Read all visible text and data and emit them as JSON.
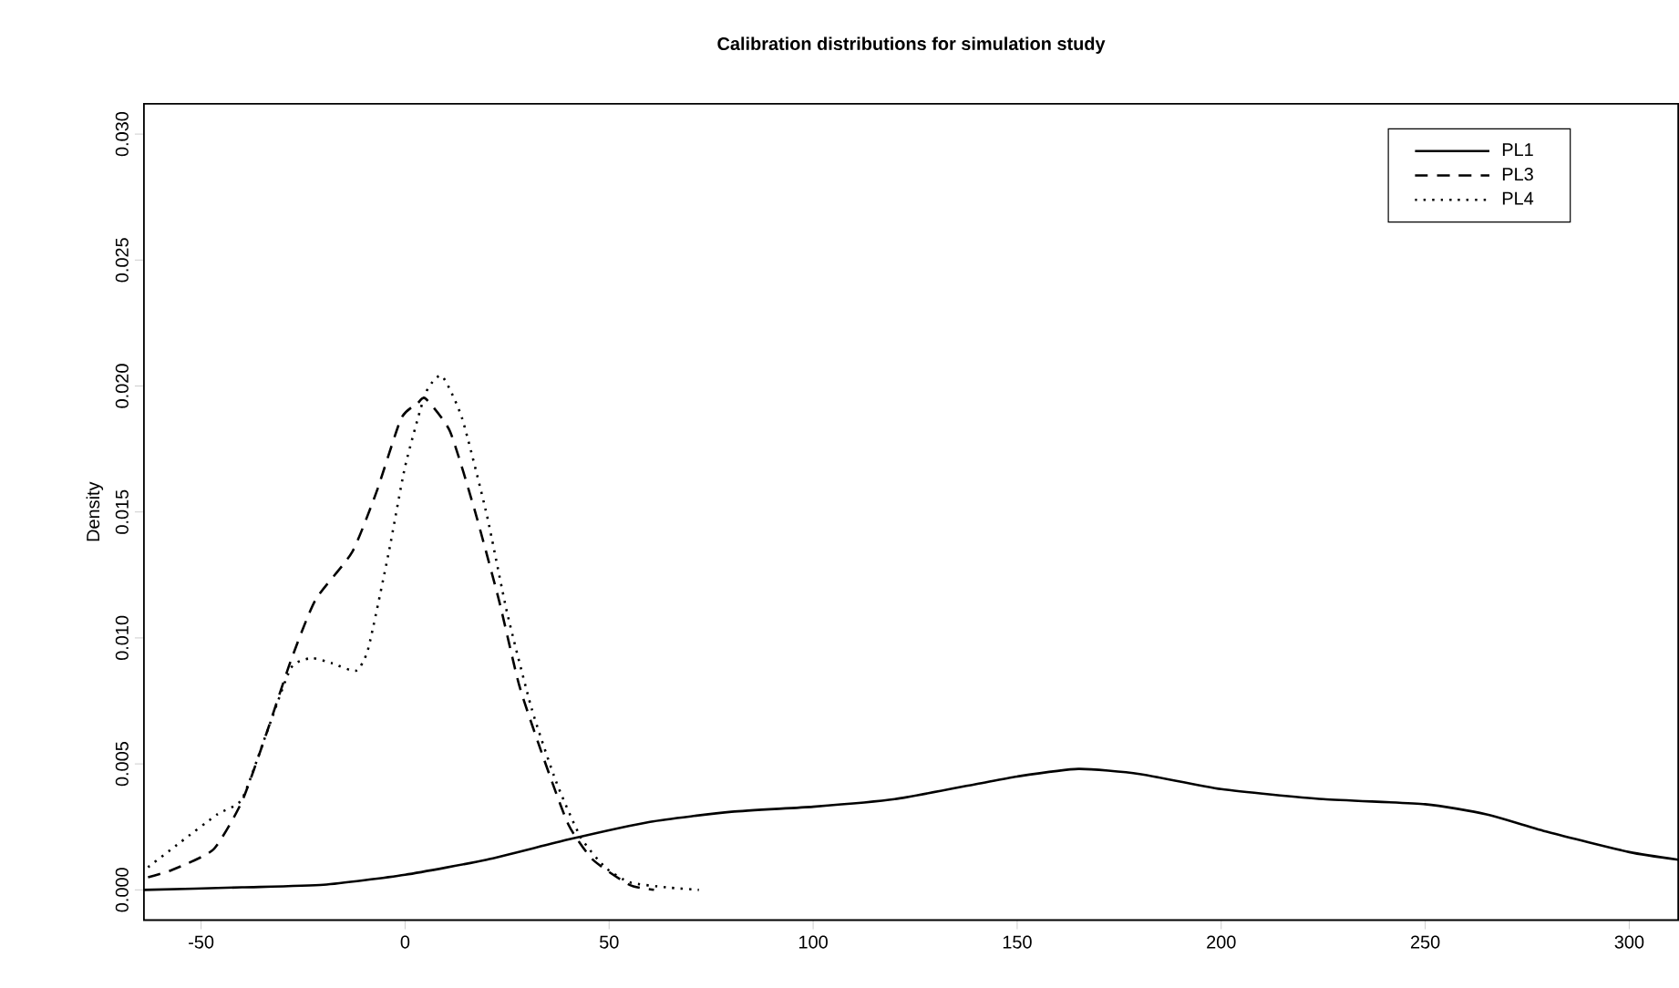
{
  "chart_data": {
    "type": "line",
    "title": "Calibration distributions for simulation study",
    "ylabel": "Density",
    "xlim": [
      -64,
      312
    ],
    "ylim": [
      -0.0012,
      0.0312
    ],
    "xticks": [
      -50,
      0,
      50,
      100,
      150,
      200,
      250,
      300
    ],
    "yticks": [
      {
        "value": 0,
        "label": "0.000"
      },
      {
        "value": 0.005,
        "label": "0.005"
      },
      {
        "value": 0.01,
        "label": "0.010"
      },
      {
        "value": 0.015,
        "label": "0.015"
      },
      {
        "value": 0.02,
        "label": "0.020"
      },
      {
        "value": 0.025,
        "label": "0.025"
      },
      {
        "value": 0.03,
        "label": "0.030"
      }
    ],
    "legend": "top right",
    "grid": false,
    "series": [
      {
        "name": "PL1",
        "color": "#000000",
        "line_style": "solid",
        "x": [
          -64,
          -40,
          -20,
          0,
          20,
          40,
          60,
          80,
          100,
          120,
          140,
          150,
          165,
          180,
          200,
          225,
          250,
          265,
          280,
          300,
          312
        ],
        "values": [
          0,
          0.0001,
          0.0002,
          0.0006,
          0.0012,
          0.002,
          0.0027,
          0.0031,
          0.0033,
          0.0036,
          0.0042,
          0.0045,
          0.0048,
          0.0046,
          0.004,
          0.0036,
          0.0034,
          0.003,
          0.0023,
          0.0015,
          0.0012
        ]
      },
      {
        "name": "PL3",
        "color": "#000000",
        "line_style": "dashed",
        "x": [
          -63,
          -57,
          -47,
          -40,
          -34,
          -28,
          -22,
          -13,
          -7,
          -1,
          3,
          5,
          11,
          17,
          23,
          28,
          34,
          40,
          46,
          55,
          61
        ],
        "values": [
          0.0005,
          0.0008,
          0.0016,
          0.0035,
          0.0062,
          0.0091,
          0.0115,
          0.0134,
          0.0158,
          0.0187,
          0.0193,
          0.0195,
          0.0182,
          0.0151,
          0.0115,
          0.0081,
          0.0052,
          0.0026,
          0.0012,
          0.0002,
          0
        ]
      },
      {
        "name": "PL4",
        "color": "#000000",
        "line_style": "dotted",
        "x": [
          -63,
          -55,
          -46,
          -40,
          -34,
          -28,
          -23,
          -18,
          -12,
          -9,
          -4,
          0,
          5,
          9,
          14,
          20,
          25,
          31,
          37,
          43,
          49,
          55,
          64,
          72
        ],
        "values": [
          0.0009,
          0.0019,
          0.003,
          0.0036,
          0.0062,
          0.0088,
          0.0092,
          0.009,
          0.0087,
          0.0096,
          0.0134,
          0.0168,
          0.0197,
          0.0204,
          0.0187,
          0.0149,
          0.011,
          0.0072,
          0.0043,
          0.0021,
          0.0009,
          0.0003,
          0.0001,
          0
        ]
      }
    ]
  }
}
